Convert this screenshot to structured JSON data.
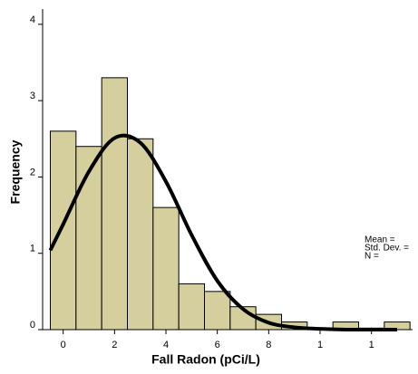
{
  "chart_data": {
    "type": "histogram",
    "x_label": "Fall Radon (pCi/L)",
    "y_label": "Frequency",
    "bins": [
      -0.5,
      0.5,
      1.5,
      2.5,
      3.5,
      4.5,
      5.5,
      6.5,
      7.5,
      8.5,
      9.5,
      10.5,
      11.5,
      12.5,
      13.5
    ],
    "values": [
      2.6,
      2.4,
      3.3,
      2.5,
      1.6,
      0.6,
      0.5,
      0.3,
      0.2,
      0.1,
      0.02,
      0.1,
      0.02,
      0.1
    ],
    "color": "#d5cf9d",
    "curve": {
      "x": [
        -0.5,
        0,
        1,
        2,
        3,
        4,
        5,
        6,
        7,
        8,
        9,
        10,
        11,
        12,
        13
      ],
      "values": [
        1.04,
        1.38,
        2.07,
        2.51,
        2.45,
        1.94,
        1.24,
        0.64,
        0.27,
        0.09,
        0.03,
        0.01,
        0,
        0,
        0
      ],
      "color": "#000000"
    },
    "xlim": [
      -0.8,
      13.6
    ],
    "ylim": [
      0,
      4.2
    ],
    "xticks": [
      0,
      2,
      4,
      6,
      8,
      {
        "value": 10,
        "label": "1"
      },
      {
        "value": 12,
        "label": "1"
      }
    ],
    "yticks": [
      0,
      1,
      2,
      3,
      4
    ],
    "stats": [
      "Mean =",
      "Std. Dev. =",
      "N ="
    ]
  }
}
